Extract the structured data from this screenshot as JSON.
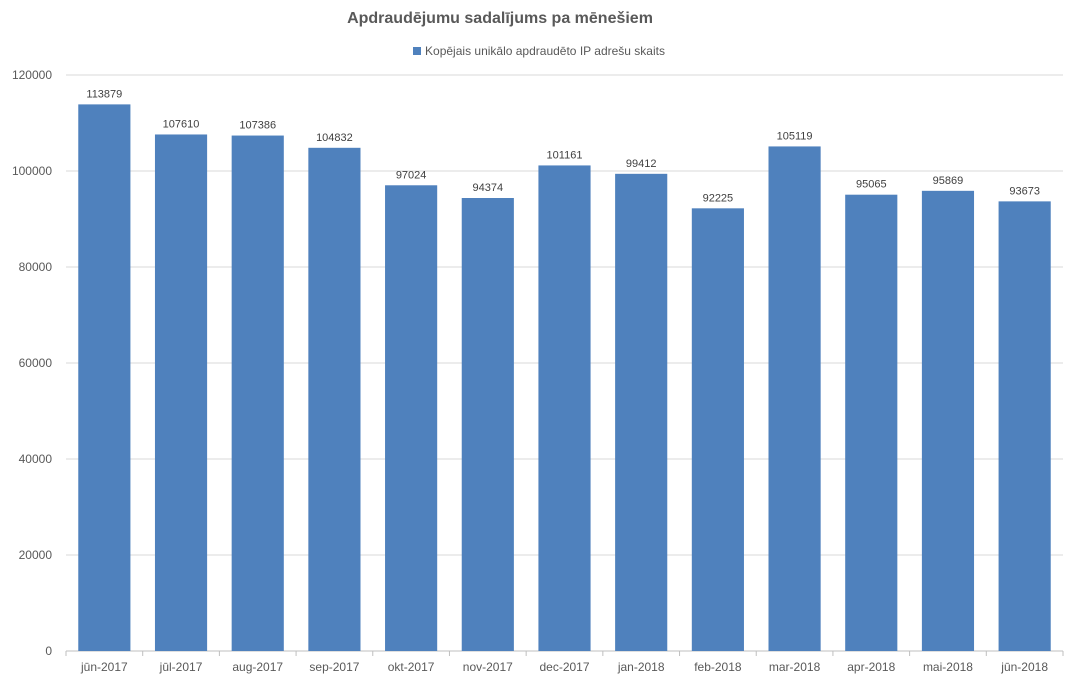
{
  "chart_data": {
    "type": "bar",
    "title": "Apdraudējumu sadalījums pa mēnešiem",
    "xlabel": "",
    "ylabel": "",
    "categories": [
      "jūn-2017",
      "jūl-2017",
      "aug-2017",
      "sep-2017",
      "okt-2017",
      "nov-2017",
      "dec-2017",
      "jan-2018",
      "feb-2018",
      "mar-2018",
      "apr-2018",
      "mai-2018",
      "jūn-2018"
    ],
    "series": [
      {
        "name": "Kopējais unikālo apdraudēto IP adrešu skaits",
        "color": "#4f81bd",
        "values": [
          113879,
          107610,
          107386,
          104832,
          97024,
          94374,
          101161,
          99412,
          92225,
          105119,
          95065,
          95869,
          93673
        ]
      }
    ],
    "ylim": [
      0,
      120000
    ],
    "yticks": [
      0,
      20000,
      40000,
      60000,
      80000,
      100000,
      120000
    ],
    "grid": true,
    "legend_position": "top"
  }
}
